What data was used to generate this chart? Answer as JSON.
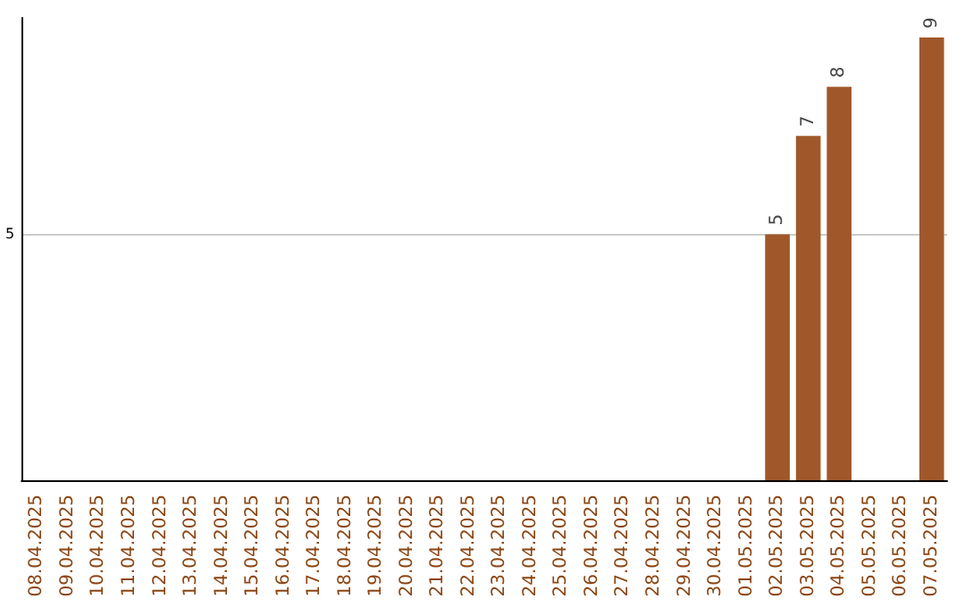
{
  "chart_data": {
    "type": "bar",
    "categories": [
      "08.04.2025",
      "09.04.2025",
      "10.04.2025",
      "11.04.2025",
      "12.04.2025",
      "13.04.2025",
      "14.04.2025",
      "15.04.2025",
      "16.04.2025",
      "17.04.2025",
      "18.04.2025",
      "19.04.2025",
      "20.04.2025",
      "21.04.2025",
      "22.04.2025",
      "23.04.2025",
      "24.04.2025",
      "25.04.2025",
      "26.04.2025",
      "27.04.2025",
      "28.04.2025",
      "29.04.2025",
      "30.04.2025",
      "01.05.2025",
      "02.05.2025",
      "03.05.2025",
      "04.05.2025",
      "05.05.2025",
      "06.05.2025",
      "07.05.2025"
    ],
    "values": [
      null,
      null,
      null,
      null,
      null,
      null,
      null,
      null,
      null,
      null,
      null,
      null,
      null,
      null,
      null,
      null,
      null,
      null,
      null,
      null,
      null,
      null,
      null,
      null,
      5,
      7,
      8,
      null,
      null,
      9
    ],
    "color": "#a0582a",
    "ylim": [
      0,
      9.4
    ],
    "yticks": [
      5
    ],
    "grid": "y",
    "data_labels": true
  }
}
